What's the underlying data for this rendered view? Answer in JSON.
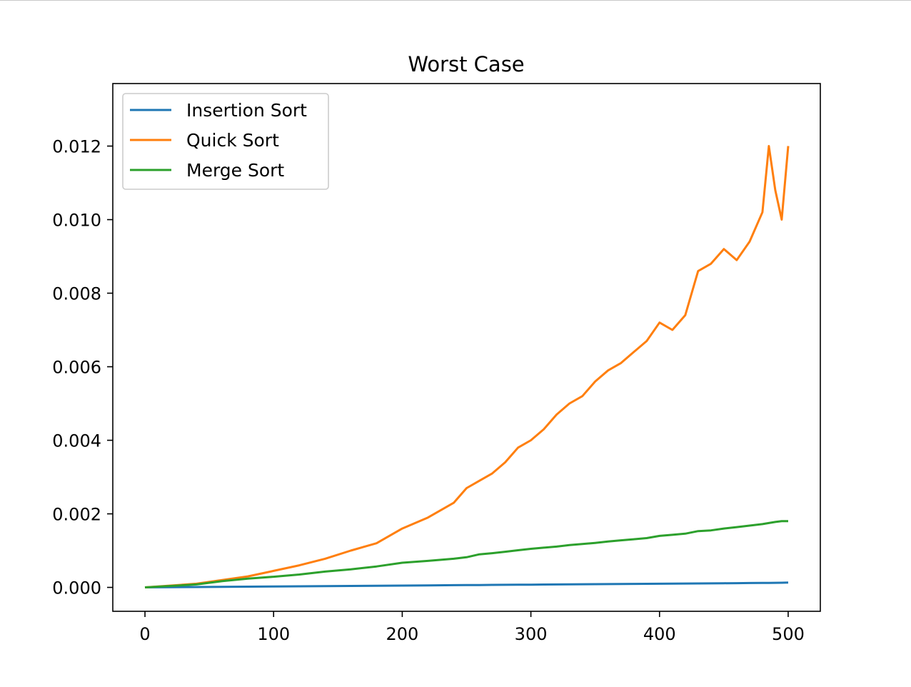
{
  "chart_data": {
    "type": "line",
    "title": "Worst Case",
    "xlabel": "",
    "ylabel": "",
    "xlim": [
      -25,
      525
    ],
    "ylim": [
      -0.00065,
      0.0137
    ],
    "xticks": [
      0,
      100,
      200,
      300,
      400,
      500
    ],
    "xtick_labels": [
      "0",
      "100",
      "200",
      "300",
      "400",
      "500"
    ],
    "yticks": [
      0,
      0.002,
      0.004,
      0.006,
      0.008,
      0.01,
      0.012
    ],
    "ytick_labels": [
      "0.000",
      "0.002",
      "0.004",
      "0.006",
      "0.008",
      "0.010",
      "0.012"
    ],
    "grid": false,
    "legend": "upper-left",
    "x": [
      0,
      20,
      40,
      60,
      80,
      100,
      120,
      140,
      160,
      180,
      200,
      220,
      240,
      250,
      260,
      270,
      280,
      290,
      300,
      310,
      320,
      330,
      340,
      350,
      360,
      370,
      380,
      390,
      400,
      410,
      420,
      430,
      440,
      450,
      460,
      470,
      480,
      485,
      490,
      495,
      500
    ],
    "series": [
      {
        "name": "Insertion Sort",
        "color": "#1f77b4",
        "values": [
          0.0,
          5e-06,
          1e-05,
          1.5e-05,
          2e-05,
          2.5e-05,
          3e-05,
          3.5e-05,
          4e-05,
          4.5e-05,
          5e-05,
          5.5e-05,
          6e-05,
          6.2e-05,
          6.5e-05,
          6.8e-05,
          7e-05,
          7.3e-05,
          7.5e-05,
          7.8e-05,
          8e-05,
          8.3e-05,
          8.5e-05,
          8.8e-05,
          9e-05,
          9.3e-05,
          9.5e-05,
          9.8e-05,
          0.0001,
          0.000103,
          0.000105,
          0.000108,
          0.00011,
          0.000113,
          0.000115,
          0.000118,
          0.00012,
          0.000122,
          0.000124,
          0.000126,
          0.00013
        ]
      },
      {
        "name": "Quick Sort",
        "color": "#ff7f0e",
        "values": [
          0.0,
          5e-05,
          0.0001,
          0.0002,
          0.0003,
          0.00045,
          0.0006,
          0.00078,
          0.001,
          0.0012,
          0.0016,
          0.0019,
          0.0023,
          0.0027,
          0.0029,
          0.0031,
          0.0034,
          0.0038,
          0.004,
          0.0043,
          0.0047,
          0.005,
          0.0052,
          0.0056,
          0.0059,
          0.0061,
          0.0064,
          0.0067,
          0.0072,
          0.007,
          0.0074,
          0.0086,
          0.0088,
          0.0092,
          0.0089,
          0.0094,
          0.0102,
          0.012,
          0.0108,
          0.01,
          0.012
        ]
      },
      {
        "name": "Merge Sort",
        "color": "#2ca02c",
        "values": [
          0.0,
          4e-05,
          8e-05,
          0.00017,
          0.00024,
          0.00029,
          0.00035,
          0.00043,
          0.00049,
          0.00057,
          0.00067,
          0.00072,
          0.00078,
          0.00082,
          0.0009,
          0.00093,
          0.00097,
          0.00101,
          0.00105,
          0.00108,
          0.00111,
          0.00115,
          0.00118,
          0.00121,
          0.00125,
          0.00128,
          0.00131,
          0.00134,
          0.0014,
          0.00143,
          0.00146,
          0.00153,
          0.00155,
          0.0016,
          0.00164,
          0.00168,
          0.00172,
          0.00175,
          0.00178,
          0.0018,
          0.0018
        ]
      }
    ]
  }
}
